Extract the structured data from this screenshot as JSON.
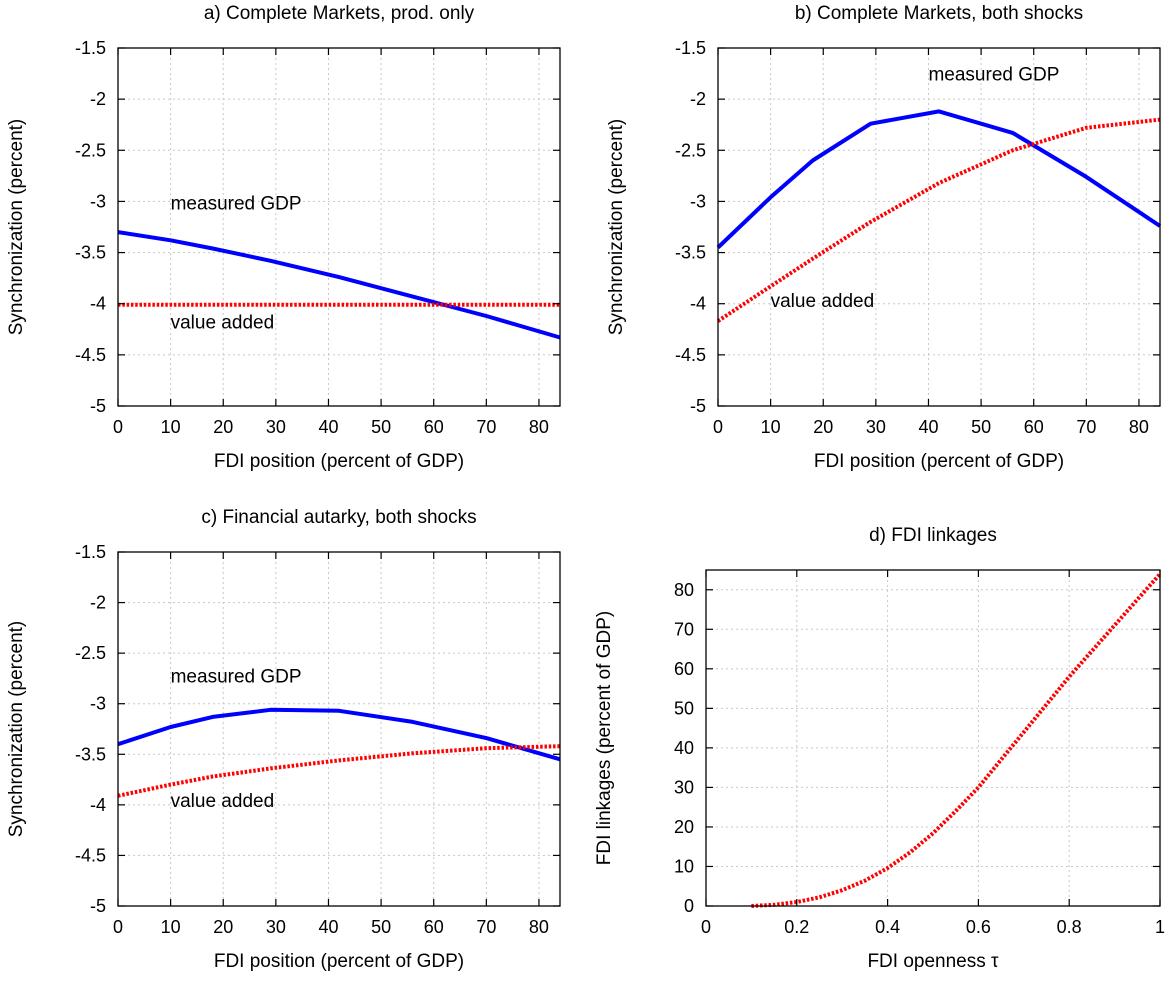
{
  "colors": {
    "measured": "#0000ff",
    "value_added": "#ff0000"
  },
  "chart_data": [
    {
      "type": "line",
      "title": "a) Complete Markets, prod. only",
      "xlabel": "FDI position (percent of GDP)",
      "ylabel": "Synchronization (percent)",
      "xlim": [
        0,
        84
      ],
      "ylim": [
        -5,
        -1.5
      ],
      "xticks": [
        0,
        10,
        20,
        30,
        40,
        50,
        60,
        70,
        80
      ],
      "yticks": [
        -5,
        -4.5,
        -4,
        -3.5,
        -3,
        -2.5,
        -2,
        -1.5
      ],
      "grid": true,
      "annotations": [
        {
          "text": "measured GDP",
          "x": 10,
          "y": -3.08
        },
        {
          "text": "value added",
          "x": 10,
          "y": -4.24
        }
      ],
      "series": [
        {
          "name": "measured GDP",
          "style": "solid",
          "x": [
            0,
            10,
            18,
            29,
            42,
            56,
            70,
            84
          ],
          "y": [
            -3.3,
            -3.38,
            -3.46,
            -3.58,
            -3.74,
            -3.93,
            -4.12,
            -4.33
          ]
        },
        {
          "name": "value added",
          "style": "dotted",
          "x": [
            0,
            10,
            18,
            29,
            42,
            56,
            70,
            84
          ],
          "y": [
            -4.01,
            -4.01,
            -4.01,
            -4.01,
            -4.01,
            -4.01,
            -4.01,
            -4.01
          ]
        }
      ]
    },
    {
      "type": "line",
      "title": "b) Complete Markets, both shocks",
      "xlabel": "FDI position (percent of GDP)",
      "ylabel": "Synchronization (percent)",
      "xlim": [
        0,
        84
      ],
      "ylim": [
        -5,
        -1.5
      ],
      "xticks": [
        0,
        10,
        20,
        30,
        40,
        50,
        60,
        70,
        80
      ],
      "yticks": [
        -5,
        -4.5,
        -4,
        -3.5,
        -3,
        -2.5,
        -2,
        -1.5
      ],
      "grid": true,
      "annotations": [
        {
          "text": "measured GDP",
          "x": 40,
          "y": -1.82
        },
        {
          "text": "value added",
          "x": 10,
          "y": -4.03
        }
      ],
      "series": [
        {
          "name": "measured GDP",
          "style": "solid",
          "x": [
            0,
            10,
            18,
            29,
            42,
            56,
            70,
            84
          ],
          "y": [
            -3.45,
            -2.96,
            -2.6,
            -2.24,
            -2.12,
            -2.33,
            -2.76,
            -3.24
          ]
        },
        {
          "name": "value added",
          "style": "dotted",
          "x": [
            0,
            10,
            18,
            29,
            42,
            56,
            70,
            84
          ],
          "y": [
            -4.17,
            -3.83,
            -3.56,
            -3.2,
            -2.82,
            -2.5,
            -2.28,
            -2.2
          ]
        }
      ]
    },
    {
      "type": "line",
      "title": "c) Financial autarky, both shocks",
      "xlabel": "FDI position (percent of GDP)",
      "ylabel": "Synchronization (percent)",
      "xlim": [
        0,
        84
      ],
      "ylim": [
        -5,
        -1.5
      ],
      "xticks": [
        0,
        10,
        20,
        30,
        40,
        50,
        60,
        70,
        80
      ],
      "yticks": [
        -5,
        -4.5,
        -4,
        -3.5,
        -3,
        -2.5,
        -2,
        -1.5
      ],
      "grid": true,
      "annotations": [
        {
          "text": "measured GDP",
          "x": 10,
          "y": -2.79
        },
        {
          "text": "value added",
          "x": 10,
          "y": -4.02
        }
      ],
      "series": [
        {
          "name": "measured GDP",
          "style": "solid",
          "x": [
            0,
            10,
            18,
            29,
            42,
            56,
            70,
            84
          ],
          "y": [
            -3.4,
            -3.23,
            -3.13,
            -3.06,
            -3.07,
            -3.18,
            -3.34,
            -3.55
          ]
        },
        {
          "name": "value added",
          "style": "dotted",
          "x": [
            0,
            10,
            18,
            29,
            42,
            56,
            70,
            84
          ],
          "y": [
            -3.91,
            -3.8,
            -3.72,
            -3.64,
            -3.56,
            -3.49,
            -3.44,
            -3.42
          ]
        }
      ]
    },
    {
      "type": "line",
      "title": "d) FDI linkages",
      "xlabel": "FDI openness τ",
      "ylabel": "FDI linkages (percent of GDP)",
      "xlim": [
        0,
        1
      ],
      "ylim": [
        0,
        85
      ],
      "xticks": [
        0,
        0.2,
        0.4,
        0.6,
        0.8,
        1
      ],
      "yticks": [
        0,
        10,
        20,
        30,
        40,
        50,
        60,
        70,
        80
      ],
      "grid": true,
      "annotations": [],
      "series": [
        {
          "name": "FDI linkages",
          "style": "dotted",
          "x": [
            0.1,
            0.15,
            0.2,
            0.25,
            0.3,
            0.35,
            0.4,
            0.45,
            0.5,
            0.55,
            0.6,
            0.65,
            0.7,
            0.75,
            0.8,
            0.85,
            0.9,
            0.95,
            1.0
          ],
          "y": [
            0,
            0.3,
            1.0,
            2.2,
            4.0,
            6.4,
            9.6,
            13.6,
            18.4,
            24.0,
            30.0,
            37.0,
            44.0,
            51.0,
            58.0,
            64.5,
            71.0,
            77.5,
            84.0
          ]
        }
      ]
    }
  ]
}
